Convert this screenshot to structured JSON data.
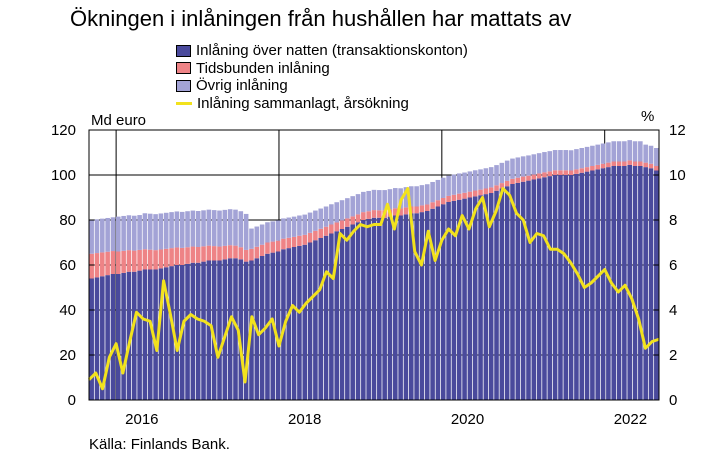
{
  "chart_data": {
    "type": "bar",
    "title": "Ökningen i inlåningen från hushållen har mattats av",
    "source": "Källa: Finlands Bank.",
    "left_axis": {
      "label": "Md euro",
      "ylim": [
        0,
        120
      ],
      "ticks": [
        0,
        20,
        40,
        60,
        80,
        100,
        120
      ]
    },
    "right_axis": {
      "label": "%",
      "ylim": [
        0,
        12
      ],
      "ticks": [
        0,
        2,
        4,
        6,
        8,
        10,
        12
      ]
    },
    "x_ticks": [
      "2016",
      "2018",
      "2020",
      "2022"
    ],
    "x_range": [
      2015.667,
      2022.667
    ],
    "stacked": true,
    "series": [
      {
        "name": "Inlåning över natten (transaktionskonton)",
        "color": "#4a4a9c",
        "axis": "left",
        "values": [
          54,
          54.5,
          55,
          55.5,
          56,
          56,
          56.5,
          57,
          57,
          57.5,
          58,
          58,
          58,
          58.5,
          59,
          59.5,
          60,
          60,
          60.5,
          61,
          61,
          61.5,
          62,
          62,
          62,
          62.5,
          63,
          63,
          62.5,
          61.5,
          62,
          63,
          64,
          65,
          65.5,
          66,
          67,
          67.5,
          68,
          68.5,
          69,
          70,
          71,
          72,
          73,
          74,
          75,
          76,
          77,
          78,
          79,
          80,
          80.5,
          81,
          81,
          81,
          81.5,
          82,
          82,
          82.5,
          83,
          83,
          83.5,
          84,
          85,
          86,
          87,
          88,
          88.5,
          89,
          89.5,
          90,
          90.5,
          91,
          91.5,
          92,
          93,
          94,
          95,
          96,
          96.5,
          97,
          97.5,
          98,
          98.5,
          99,
          99.5,
          100,
          100,
          100,
          100,
          100.5,
          101,
          101.5,
          102,
          102.5,
          103,
          103.5,
          104,
          104,
          104,
          104.5,
          104,
          104,
          103.5,
          103,
          102
        ]
      },
      {
        "name": "Tidsbunden inlåning",
        "color": "#ee8386",
        "axis": "left",
        "values": [
          11,
          10.8,
          10.6,
          10.4,
          10.2,
          10,
          9.8,
          9.6,
          9.4,
          9.2,
          9,
          8.8,
          8.6,
          8.4,
          8.2,
          8,
          7.8,
          7.6,
          7.4,
          7.2,
          7,
          6.8,
          6.6,
          6.4,
          6.2,
          6,
          5.8,
          5.6,
          5.4,
          5.2,
          5.2,
          5.1,
          5,
          5,
          4.9,
          4.8,
          4.7,
          4.6,
          4.5,
          4.5,
          4.4,
          4.3,
          4.2,
          4.1,
          4,
          4,
          3.9,
          3.8,
          3.7,
          3.6,
          3.5,
          3.5,
          3.4,
          3.4,
          3.3,
          3.3,
          3.2,
          3.2,
          3.1,
          3.1,
          3,
          3,
          3,
          2.9,
          2.9,
          2.8,
          2.8,
          2.7,
          2.7,
          2.7,
          2.6,
          2.6,
          2.6,
          2.5,
          2.5,
          2.5,
          2.4,
          2.4,
          2.4,
          2.3,
          2.3,
          2.3,
          2.2,
          2.2,
          2.2,
          2.2,
          2.1,
          2.1,
          2.1,
          2.1,
          2,
          2,
          2,
          2,
          2,
          2,
          2,
          2,
          2,
          2,
          2,
          2,
          2,
          2,
          2,
          2,
          2
        ]
      },
      {
        "name": "Övrig inlåning",
        "color": "#a3a3d6",
        "axis": "left",
        "values": [
          15,
          15,
          15,
          15,
          15,
          15.5,
          15.5,
          15.5,
          15.5,
          15.5,
          16,
          16,
          16,
          16,
          16,
          16,
          16,
          16,
          16,
          16,
          16,
          16,
          16,
          16,
          16,
          16,
          16,
          16,
          16,
          16,
          9,
          9,
          9,
          9,
          9,
          9,
          9,
          9,
          9,
          9,
          9,
          9,
          9,
          9,
          9,
          9,
          9,
          9,
          9,
          9,
          9,
          9,
          9,
          9,
          9,
          9,
          9,
          9,
          9,
          9,
          9,
          9,
          9,
          9,
          9,
          9,
          9,
          9,
          9,
          9,
          9,
          9,
          9,
          9,
          9,
          9,
          9,
          9,
          9,
          9,
          9,
          9,
          9,
          9,
          9,
          9,
          9,
          9,
          9,
          9,
          9,
          9,
          9,
          9,
          9,
          9,
          9,
          9,
          9,
          9,
          9,
          9,
          9,
          9,
          8,
          8,
          8
        ]
      },
      {
        "name": "Inlåning sammanlagt, årsökning",
        "color": "#f2e21d",
        "axis": "right",
        "type": "line",
        "x": [
          2015.667,
          2015.75,
          2015.833,
          2015.917,
          2016.0,
          2016.083,
          2016.167,
          2016.25,
          2016.333,
          2016.417,
          2016.5,
          2016.583,
          2016.667,
          2016.75,
          2016.833,
          2016.917,
          2017.0,
          2017.083,
          2017.167,
          2017.25,
          2017.333,
          2017.417,
          2017.5,
          2017.583,
          2017.667,
          2017.75,
          2017.833,
          2017.917,
          2018.0,
          2018.083,
          2018.167,
          2018.25,
          2018.333,
          2018.417,
          2018.5,
          2018.583,
          2018.667,
          2018.75,
          2018.833,
          2018.917,
          2019.0,
          2019.083,
          2019.167,
          2019.25,
          2019.333,
          2019.417,
          2019.5,
          2019.583,
          2019.667,
          2019.75,
          2019.833,
          2019.917,
          2020.0,
          2020.083,
          2020.167,
          2020.25,
          2020.333,
          2020.417,
          2020.5,
          2020.583,
          2020.667,
          2020.75,
          2020.833,
          2020.917,
          2021.0,
          2021.083,
          2021.167,
          2021.25,
          2021.333,
          2021.417,
          2021.5,
          2021.583,
          2021.667,
          2021.75,
          2021.833,
          2021.917,
          2022.0,
          2022.083,
          2022.167,
          2022.25,
          2022.333,
          2022.417,
          2022.5,
          2022.583,
          2022.667
        ],
        "values": [
          0.9,
          1.2,
          0.5,
          1.9,
          2.5,
          1.2,
          2.6,
          3.9,
          3.6,
          3.5,
          2.2,
          5.3,
          3.8,
          2.2,
          3.5,
          3.8,
          3.6,
          3.5,
          3.3,
          1.9,
          2.8,
          3.7,
          3.1,
          0.8,
          3.7,
          2.9,
          3.2,
          3.6,
          2.4,
          3.5,
          4.2,
          3.9,
          4.3,
          4.6,
          4.9,
          5.7,
          5.4,
          7.4,
          7.1,
          7.5,
          7.8,
          7.7,
          7.8,
          7.8,
          8.7,
          7.6,
          8.9,
          9.4,
          6.6,
          6.0,
          7.5,
          6.2,
          7.1,
          7.6,
          7.3,
          8.2,
          7.6,
          8.5,
          9.0,
          7.7,
          8.4,
          9.4,
          9.1,
          8.3,
          8.0,
          7.0,
          7.4,
          7.3,
          6.7,
          6.7,
          6.5,
          6.1,
          5.6,
          5.0,
          5.2,
          5.5,
          5.8,
          5.2,
          4.8,
          5.1,
          4.5,
          3.6,
          2.3,
          2.6,
          2.7
        ]
      }
    ]
  }
}
